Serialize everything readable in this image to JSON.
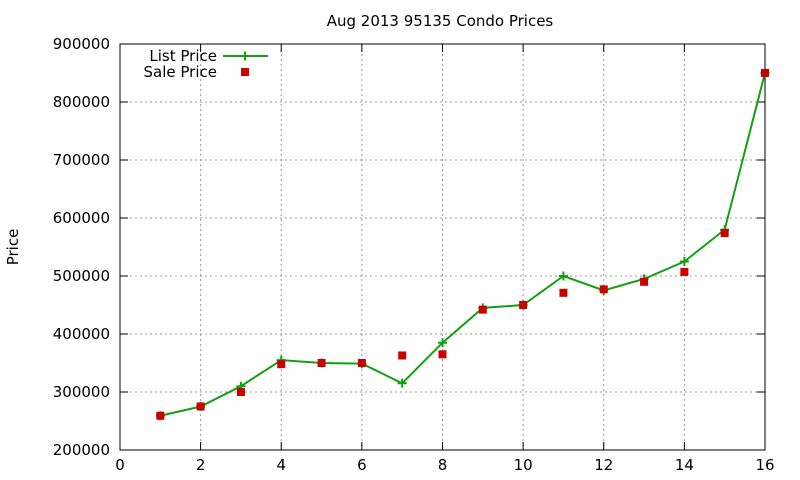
{
  "chart_data": {
    "type": "line",
    "title": "Aug 2013 95135 Condo Prices",
    "xlabel": "",
    "ylabel": "Price",
    "xlim": [
      0,
      16
    ],
    "ylim": [
      200000,
      900000
    ],
    "xticks": [
      0,
      2,
      4,
      6,
      8,
      10,
      12,
      14,
      16
    ],
    "yticks": [
      200000,
      300000,
      400000,
      500000,
      600000,
      700000,
      800000,
      900000
    ],
    "grid": true,
    "legend": "top-left",
    "series": [
      {
        "name": "List Price",
        "style": "line-plus",
        "color": "#11a011",
        "x": [
          1,
          2,
          3,
          4,
          5,
          6,
          7,
          8,
          9,
          10,
          11,
          12,
          13,
          14,
          15,
          16
        ],
        "y": [
          259000,
          275000,
          310000,
          355000,
          350000,
          349000,
          315000,
          385000,
          445000,
          450000,
          500000,
          475000,
          495000,
          525000,
          580000,
          850000
        ]
      },
      {
        "name": "Sale Price",
        "style": "square",
        "color": "#cc0000",
        "x": [
          1,
          2,
          3,
          4,
          5,
          6,
          7,
          8,
          9,
          10,
          11,
          12,
          13,
          14,
          15,
          16
        ],
        "y": [
          259000,
          275000,
          300000,
          348000,
          350000,
          350000,
          363000,
          365000,
          442000,
          450000,
          471000,
          477000,
          490000,
          507000,
          574000,
          850000
        ]
      }
    ]
  }
}
